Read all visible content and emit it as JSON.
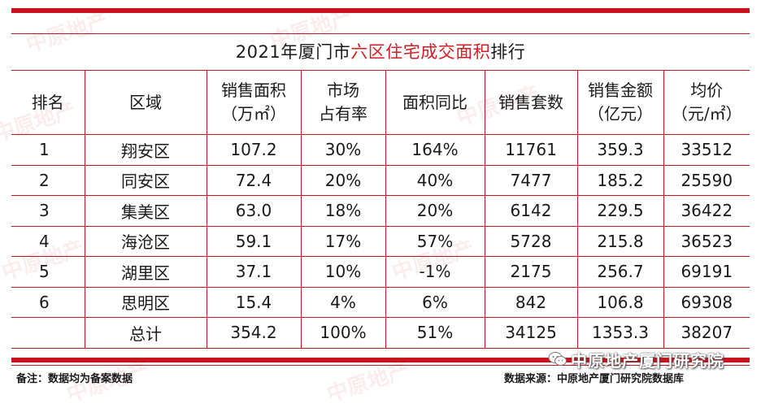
{
  "title": {
    "prefix": "2021年厦门市",
    "highlight": "六区住宅成交面积",
    "suffix": "排行"
  },
  "table": {
    "headers": [
      [
        "排名"
      ],
      [
        "区域"
      ],
      [
        "销售面积",
        "（万㎡）"
      ],
      [
        "市场",
        "占有率"
      ],
      [
        "面积同比"
      ],
      [
        "销售套数"
      ],
      [
        "销售金额",
        "（亿元）"
      ],
      [
        "均价",
        "（元/㎡）"
      ]
    ],
    "rows": [
      [
        "1",
        "翔安区",
        "107.2",
        "30%",
        "164%",
        "11761",
        "359.3",
        "33512"
      ],
      [
        "2",
        "同安区",
        "72.4",
        "20%",
        "40%",
        "7477",
        "185.2",
        "25590"
      ],
      [
        "3",
        "集美区",
        "63.0",
        "18%",
        "20%",
        "6142",
        "229.5",
        "36422"
      ],
      [
        "4",
        "海沧区",
        "59.1",
        "17%",
        "57%",
        "5728",
        "215.8",
        "36523"
      ],
      [
        "5",
        "湖里区",
        "37.1",
        "10%",
        "-1%",
        "2175",
        "256.7",
        "69191"
      ],
      [
        "6",
        "思明区",
        "15.4",
        "4%",
        "6%",
        "842",
        "106.8",
        "69308"
      ],
      [
        "",
        "总计",
        "354.2",
        "100%",
        "51%",
        "34125",
        "1353.3",
        "38207"
      ]
    ]
  },
  "footer": {
    "note": "备注：数据均为备案数据",
    "source": "数据来源：中原地产厦门研究院数据库",
    "brand": "中原地产厦门研究院"
  },
  "watermark": "中原地产",
  "colors": {
    "accent": "#c8141c",
    "highlight": "#d21e25"
  },
  "icons": {
    "brand": "wechat-icon"
  }
}
